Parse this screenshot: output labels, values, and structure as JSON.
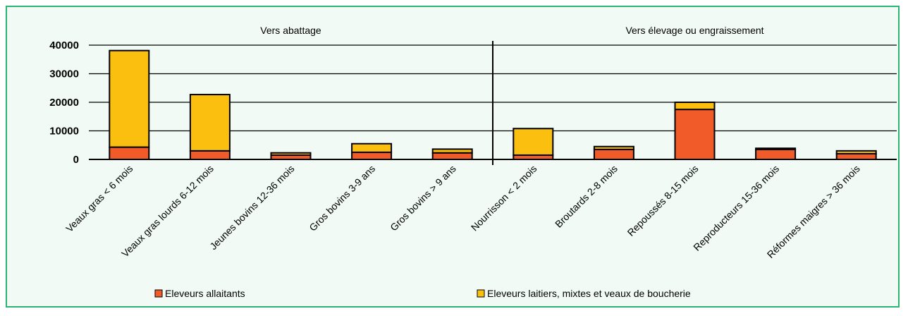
{
  "chart_data": {
    "type": "bar",
    "stacked": true,
    "group_labels": [
      "Vers abattage",
      "Vers élevage ou engraissement"
    ],
    "categories": [
      "Veaux gras < 6 mois",
      "Veaux gras lourds 6-12 mois",
      "Jeunes bovins 12-36 mois",
      "Gros bovins 3-9 ans",
      "Gros bovins > 9 ans",
      "Nourrisson < 2 mois",
      "Broutards 2-8 mois",
      "Repoussés 8-15 mois",
      "Reproducteurs 15-36 mois",
      "Réformes maigres > 36 mois"
    ],
    "series": [
      {
        "name": "Eleveurs allaitants",
        "color": "#f15a29",
        "values": [
          4300,
          3000,
          1500,
          2500,
          2300,
          1500,
          3500,
          17500,
          3500,
          2000
        ]
      },
      {
        "name": "Eleveurs laitiers, mixtes et veaux de boucherie",
        "color": "#fbbf0f",
        "values": [
          33800,
          19700,
          800,
          3000,
          1300,
          9300,
          1000,
          2500,
          400,
          1000
        ]
      }
    ],
    "yticks": [
      "0",
      "10000",
      "20000",
      "30000",
      "40000"
    ],
    "ylim": [
      0,
      40000
    ],
    "grid": true,
    "legend_position": "bottom"
  }
}
